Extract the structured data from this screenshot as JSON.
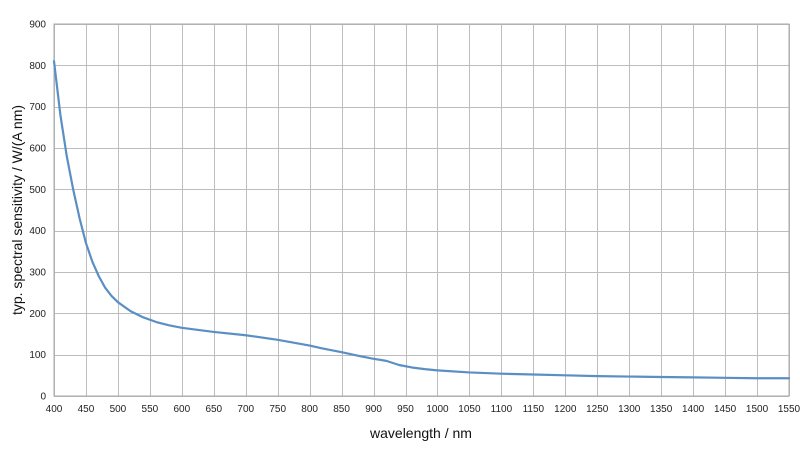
{
  "chart_data": {
    "type": "line",
    "title": "",
    "xlabel": "wavelength / nm",
    "ylabel": "typ. spectral sensitivity / W/(A nm)",
    "xlim": [
      400,
      1550
    ],
    "ylim": [
      0,
      900
    ],
    "grid": true,
    "legend": "none",
    "xticks": [
      400,
      450,
      500,
      550,
      600,
      650,
      700,
      750,
      800,
      850,
      900,
      950,
      1000,
      1050,
      1100,
      1150,
      1200,
      1250,
      1300,
      1350,
      1400,
      1450,
      1500,
      1550
    ],
    "yticks": [
      0,
      100,
      200,
      300,
      400,
      500,
      600,
      700,
      800,
      900
    ],
    "line_color": "#5b8fc4",
    "series": [
      {
        "x": [
          400,
          410,
          420,
          430,
          440,
          450,
          460,
          470,
          480,
          490,
          500,
          520,
          540,
          560,
          580,
          600,
          650,
          700,
          750,
          800,
          820,
          850,
          880,
          900,
          920,
          940,
          960,
          980,
          1000,
          1050,
          1100,
          1150,
          1200,
          1250,
          1300,
          1350,
          1400,
          1450,
          1500,
          1550
        ],
        "y": [
          810,
          680,
          580,
          500,
          430,
          370,
          325,
          290,
          262,
          242,
          227,
          205,
          190,
          179,
          171,
          165,
          155,
          147,
          136,
          122,
          115,
          106,
          96,
          90,
          85,
          75,
          69,
          65,
          62,
          57,
          54,
          52,
          50,
          48,
          47,
          46,
          45,
          44,
          43,
          43
        ]
      }
    ]
  }
}
